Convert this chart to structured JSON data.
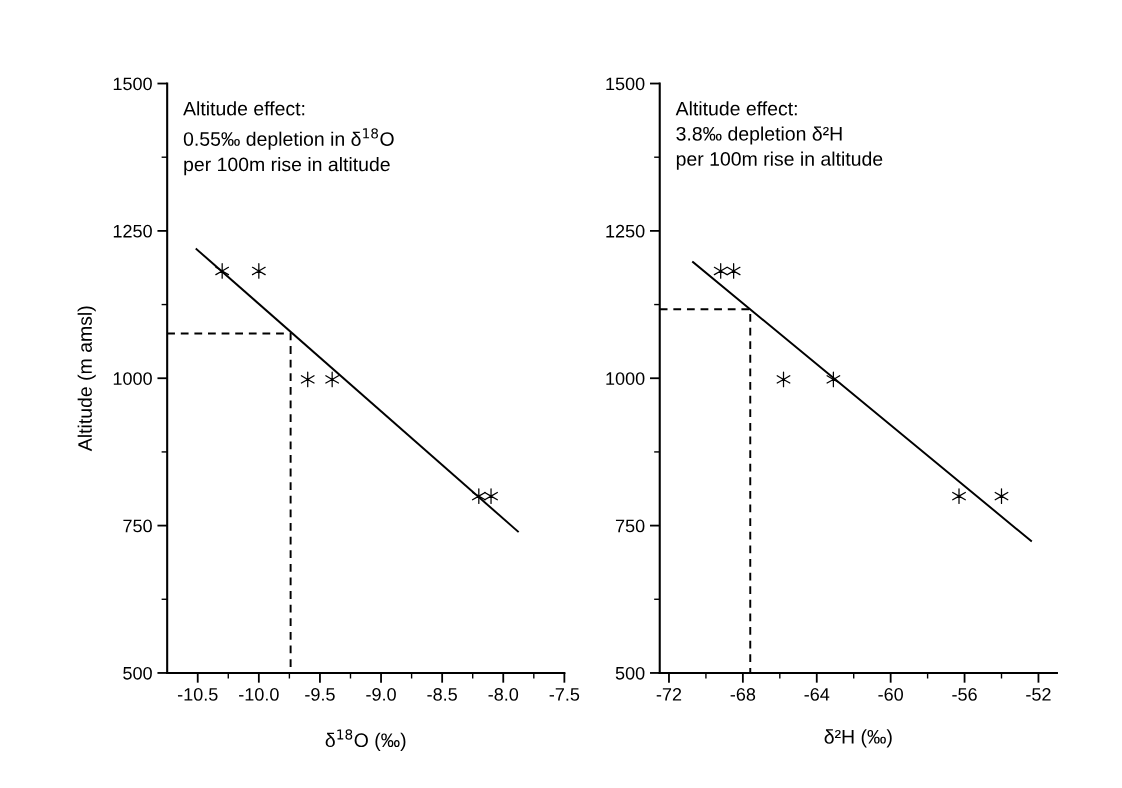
{
  "chart_data": [
    {
      "type": "scatter",
      "xlabel": "δ$^{18}$O (‰)",
      "ylabel": "Altitude (m amsl)",
      "annotations": [
        "Altitude effect:\n0.55‰ depletion in δ$^{18}$O\nper 100m rise in altitude"
      ],
      "xlim": [
        -10.75,
        -7.5
      ],
      "xticks": [
        -10.5,
        {
          "value": -10.0,
          "label": "-10.0"
        },
        -9.5,
        {
          "value": -9.0,
          "label": "-9.0"
        },
        -8.5,
        {
          "value": -8.0,
          "label": "-8.0"
        },
        -7.5
      ],
      "ylim": [
        500,
        1500
      ],
      "yticks": [
        500,
        750,
        1000,
        1250,
        1500
      ],
      "grid": false,
      "series": [
        {
          "marker": "cross",
          "color": "#000000",
          "x": [
            -10.3,
            -10.0,
            -9.6,
            -9.4,
            -8.2,
            -8.1
          ],
          "values": [
            1182,
            1182,
            998,
            998,
            800,
            800
          ]
        },
        {
          "type": "line",
          "line_style": "solid",
          "color": "#000000",
          "x": [
            -10.51,
            -7.88
          ],
          "values": [
            1219,
            740
          ]
        },
        {
          "type": "line",
          "line_style": "dashed",
          "color": "#000000",
          "x": [
            -10.75,
            -9.74,
            -9.74
          ],
          "values": [
            1076,
            1076,
            500
          ]
        }
      ]
    },
    {
      "type": "scatter",
      "xlabel": "δ²H (‰)",
      "annotations": [
        "Altitude effect:\n3.8‰ depletion δ²H\nper 100m rise in altitude"
      ],
      "xlim": [
        -72.5,
        -51
      ],
      "xticks": [
        -72,
        -68,
        -64,
        -60,
        -56,
        -52
      ],
      "ylim": [
        500,
        1500
      ],
      "yticks": [
        500,
        750,
        1000,
        1250,
        1500
      ],
      "grid": false,
      "series": [
        {
          "marker": "cross",
          "color": "#000000",
          "x": [
            -69.2,
            -68.5,
            -65.8,
            -63.1,
            -56.3,
            -54.0
          ],
          "values": [
            1182,
            1182,
            998,
            998,
            800,
            800
          ]
        },
        {
          "type": "line",
          "line_style": "solid",
          "color": "#000000",
          "x": [
            -70.7,
            -52.4
          ],
          "values": [
            1197,
            724
          ]
        },
        {
          "type": "line",
          "line_style": "dashed",
          "color": "#000000",
          "x": [
            -72.5,
            -67.6,
            -67.6
          ],
          "values": [
            1117,
            1117,
            500
          ]
        }
      ]
    }
  ]
}
